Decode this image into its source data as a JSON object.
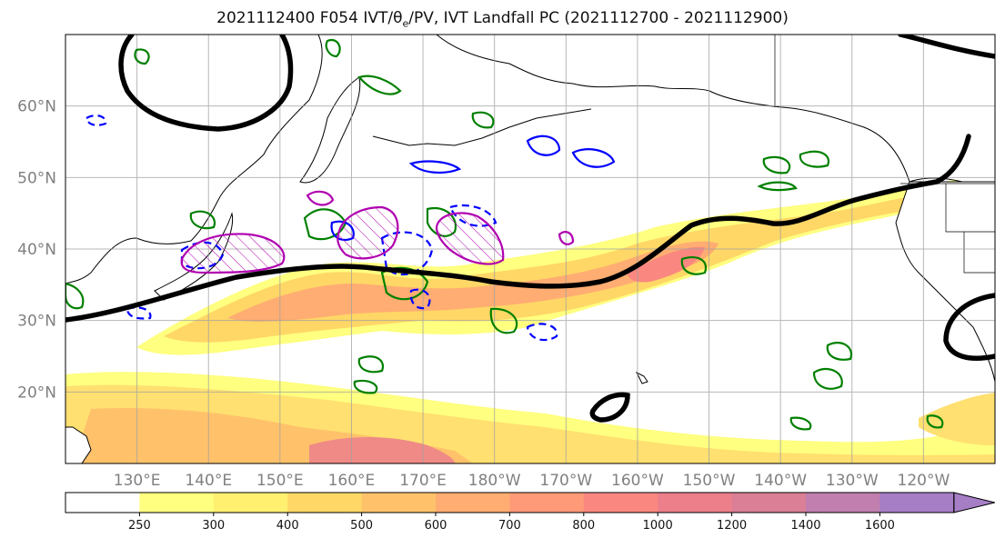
{
  "title": {
    "prefix": "2021112400 F054 IVT/",
    "theta": "θ",
    "sub": "e",
    "suffix": "/PV, IVT Landfall PC (2021112700 - 2021112900)"
  },
  "map": {
    "projection": "PlateCarree",
    "lon_range": [
      120,
      250
    ],
    "lat_range": [
      10,
      70
    ],
    "lat_ticks": [
      {
        "lat": 20,
        "label": "20°N"
      },
      {
        "lat": 30,
        "label": "30°N"
      },
      {
        "lat": 40,
        "label": "40°N"
      },
      {
        "lat": 50,
        "label": "50°N"
      },
      {
        "lat": 60,
        "label": "60°N"
      }
    ],
    "lon_ticks": [
      {
        "lon": 130,
        "label": "130°E"
      },
      {
        "lon": 140,
        "label": "140°E"
      },
      {
        "lon": 150,
        "label": "150°E"
      },
      {
        "lon": 160,
        "label": "160°E"
      },
      {
        "lon": 170,
        "label": "170°E"
      },
      {
        "lon": 180,
        "label": "180°W"
      },
      {
        "lon": 190,
        "label": "170°W"
      },
      {
        "lon": 200,
        "label": "160°W"
      },
      {
        "lon": 210,
        "label": "150°W"
      },
      {
        "lon": 220,
        "label": "140°W"
      },
      {
        "lon": 230,
        "label": "130°W"
      },
      {
        "lon": 240,
        "label": "120°W"
      }
    ],
    "grid": true,
    "features": {
      "ivt_fill": "yellow-to-red shading along an atmospheric river from ~30°N 130°E to ~49°N 235°E, plus a tropical band near 10–20°N",
      "pv_contours": "black bold line near 37°N across the Pacific rising to ~50°N at the west coast",
      "theta_e_contours": "green, blue dashed and blue solid contour lines",
      "landfall_pc": "magenta closed contours with hatching"
    }
  },
  "colorbar": {
    "bins": [
      {
        "label": "250",
        "color": "#ffff80"
      },
      {
        "label": "300",
        "color": "#fff070"
      },
      {
        "label": "400",
        "color": "#ffd766"
      },
      {
        "label": "500",
        "color": "#ffc26b"
      },
      {
        "label": "600",
        "color": "#ffad72"
      },
      {
        "label": "700",
        "color": "#ff9a78"
      },
      {
        "label": "800",
        "color": "#fa8880"
      },
      {
        "label": "1000",
        "color": "#ec7f8a"
      },
      {
        "label": "1200",
        "color": "#da7f96"
      },
      {
        "label": "1400",
        "color": "#c07fae"
      },
      {
        "label": "1600",
        "color": "#a67ec6"
      }
    ],
    "first_color": "#ffffff",
    "extend": "max"
  }
}
